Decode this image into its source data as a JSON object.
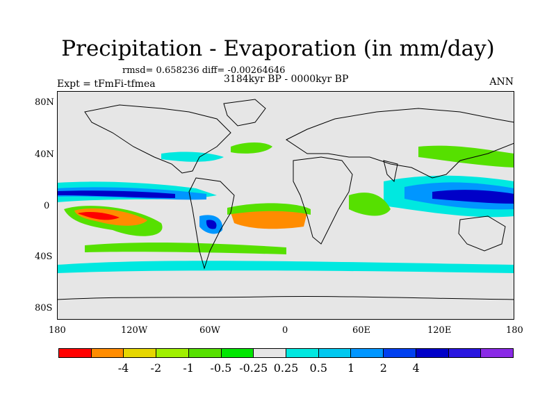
{
  "title": "Precipitation - Evaporation (in mm/day)",
  "stats": "rmsd= 0.658236 diff= -0.00264646",
  "expt": "Expt = tFmFi-tfmea",
  "period": "3184kyr BP - 0000kyr BP",
  "season": "ANN",
  "lat_ticks": [
    "80N",
    "40N",
    "0",
    "40S",
    "80S"
  ],
  "lon_ticks": [
    "180",
    "120W",
    "60W",
    "0",
    "60E",
    "120E",
    "180"
  ],
  "colorbar": {
    "colors": [
      "#ff0000",
      "#ff8c00",
      "#e6d600",
      "#a0f000",
      "#56e000",
      "#00e600",
      "#e6e6e6",
      "#00e8e0",
      "#00c8f0",
      "#0096ff",
      "#0040f0",
      "#0000c8",
      "#2a16e0",
      "#8a2ae6"
    ],
    "labels": [
      "-4",
      "-2",
      "-1",
      "-0.5",
      "-0.25",
      "0.25",
      "0.5",
      "1",
      "2",
      "4"
    ]
  },
  "colors": {
    "ocean": "#e6e6e6",
    "coast": "#000000"
  }
}
